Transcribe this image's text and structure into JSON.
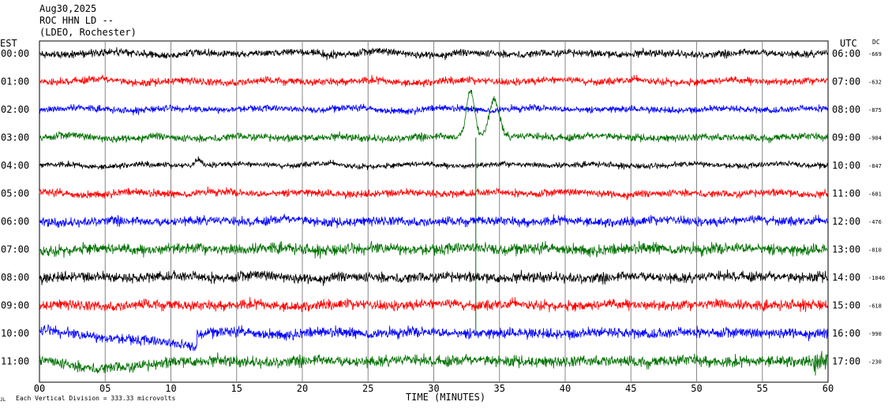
{
  "header": {
    "date": "Aug30,2025",
    "station": "ROC HHN LD --",
    "network": "(LDEO, Rochester)"
  },
  "left_axis_label": "EST",
  "right_axis_label": "UTC",
  "dc_label": "DC",
  "footer": {
    "scale_note": "Each Vertical Division =  333.33 microvolts",
    "corner_mark": "JL"
  },
  "chart_data": {
    "type": "line",
    "title": "",
    "xlabel": "TIME (MINUTES)",
    "ylabel": "",
    "xlim": [
      0,
      60
    ],
    "x_ticks": [
      "00",
      "05",
      "10",
      "15",
      "20",
      "25",
      "30",
      "35",
      "40",
      "45",
      "50",
      "55",
      "60"
    ],
    "grid": "vertical every 5 minutes",
    "trace_colors": [
      "#000000",
      "#ff0000",
      "#0000ff",
      "#007000"
    ],
    "series": [
      {
        "est": "00:00",
        "utc": "06:00",
        "dc": "-669",
        "color": "#000000"
      },
      {
        "est": "01:00",
        "utc": "07:00",
        "dc": "-632",
        "color": "#ff0000"
      },
      {
        "est": "02:00",
        "utc": "08:00",
        "dc": "-875",
        "color": "#0000ff"
      },
      {
        "est": "03:00",
        "utc": "09:00",
        "dc": "-904",
        "color": "#007000"
      },
      {
        "est": "04:00",
        "utc": "10:00",
        "dc": "-847",
        "color": "#000000"
      },
      {
        "est": "05:00",
        "utc": "11:00",
        "dc": "-681",
        "color": "#ff0000"
      },
      {
        "est": "06:00",
        "utc": "12:00",
        "dc": "-476",
        "color": "#0000ff"
      },
      {
        "est": "07:00",
        "utc": "13:00",
        "dc": "-810",
        "color": "#007000"
      },
      {
        "est": "08:00",
        "utc": "14:00",
        "dc": "-1046",
        "color": "#000000"
      },
      {
        "est": "09:00",
        "utc": "15:00",
        "dc": "-618",
        "color": "#ff0000"
      },
      {
        "est": "10:00",
        "utc": "16:00",
        "dc": "-990",
        "color": "#0000ff"
      },
      {
        "est": "11:00",
        "utc": "17:00",
        "dc": "-230",
        "color": "#007000"
      }
    ]
  }
}
